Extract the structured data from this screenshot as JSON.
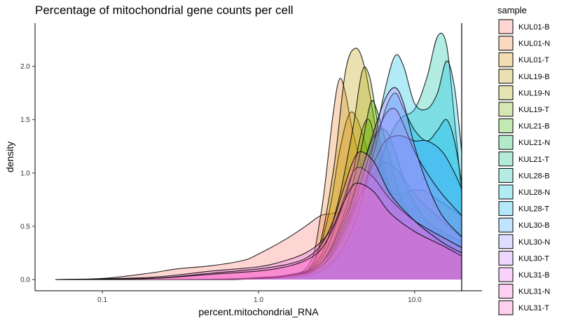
{
  "chart_data": {
    "type": "area",
    "subtype": "density",
    "title": "Percentage of mitochondrial gene counts per cell",
    "xlabel": "percent.mitochondrial_RNA",
    "ylabel": "density",
    "x_scale": "log10",
    "x_ticks": [
      0.1,
      1.0,
      10.0
    ],
    "x_tick_labels": [
      "0.1",
      "1.0",
      "10.0"
    ],
    "y_ticks": [
      0.0,
      0.5,
      1.0,
      1.5,
      2.0
    ],
    "y_tick_labels": [
      "0.0",
      "0.5",
      "1.0",
      "1.5",
      "2.0"
    ],
    "xlim": [
      0.05,
      20
    ],
    "ylim": [
      0,
      2.3
    ],
    "vline_x": 20,
    "legend_title": "sample",
    "legend_position": "right",
    "fill_alpha": 0.3,
    "series": [
      {
        "name": "KUL01-B",
        "color": "#F8766D",
        "points": [
          [
            0.05,
            0.0
          ],
          [
            0.1,
            0.01
          ],
          [
            0.2,
            0.06
          ],
          [
            0.3,
            0.1
          ],
          [
            0.5,
            0.13
          ],
          [
            0.8,
            0.18
          ],
          [
            1.0,
            0.24
          ],
          [
            1.5,
            0.38
          ],
          [
            2.0,
            0.5
          ],
          [
            2.5,
            0.6
          ],
          [
            3.0,
            0.62
          ],
          [
            3.5,
            0.65
          ],
          [
            4.0,
            0.68
          ],
          [
            5.0,
            0.78
          ],
          [
            6.0,
            0.82
          ],
          [
            8.0,
            0.8
          ],
          [
            10.0,
            0.84
          ],
          [
            12.0,
            0.82
          ],
          [
            15.0,
            0.72
          ],
          [
            20.0,
            0.6
          ]
        ]
      },
      {
        "name": "KUL01-N",
        "color": "#EA8331",
        "points": [
          [
            0.05,
            0.0
          ],
          [
            0.3,
            0.0
          ],
          [
            1.0,
            0.02
          ],
          [
            2.0,
            0.1
          ],
          [
            2.5,
            0.6
          ],
          [
            3.0,
            1.55
          ],
          [
            3.3,
            1.88
          ],
          [
            3.6,
            1.75
          ],
          [
            4.0,
            1.4
          ],
          [
            5.0,
            0.85
          ],
          [
            6.0,
            0.55
          ],
          [
            8.0,
            0.35
          ],
          [
            10.0,
            0.28
          ],
          [
            15.0,
            0.2
          ],
          [
            20.0,
            0.15
          ]
        ]
      },
      {
        "name": "KUL01-T",
        "color": "#D89000",
        "points": [
          [
            0.05,
            0.0
          ],
          [
            0.5,
            0.0
          ],
          [
            1.5,
            0.03
          ],
          [
            2.2,
            0.12
          ],
          [
            2.8,
            0.6
          ],
          [
            3.3,
            1.2
          ],
          [
            3.8,
            1.55
          ],
          [
            4.3,
            1.5
          ],
          [
            5.0,
            1.2
          ],
          [
            6.0,
            0.85
          ],
          [
            8.0,
            0.6
          ],
          [
            10.0,
            0.5
          ],
          [
            15.0,
            0.4
          ],
          [
            20.0,
            0.3
          ]
        ]
      },
      {
        "name": "KUL19-B",
        "color": "#C09B00",
        "points": [
          [
            0.05,
            0.0
          ],
          [
            0.5,
            0.0
          ],
          [
            1.5,
            0.03
          ],
          [
            2.3,
            0.2
          ],
          [
            3.0,
            1.0
          ],
          [
            3.6,
            1.95
          ],
          [
            4.2,
            2.17
          ],
          [
            4.8,
            1.98
          ],
          [
            5.5,
            1.5
          ],
          [
            6.0,
            1.2
          ],
          [
            7.0,
            0.8
          ],
          [
            9.0,
            0.55
          ],
          [
            12.0,
            0.4
          ],
          [
            20.0,
            0.3
          ]
        ]
      },
      {
        "name": "KUL19-N",
        "color": "#A3A500",
        "points": [
          [
            0.05,
            0.0
          ],
          [
            0.5,
            0.0
          ],
          [
            1.5,
            0.04
          ],
          [
            2.4,
            0.18
          ],
          [
            3.2,
            0.7
          ],
          [
            4.0,
            1.4
          ],
          [
            4.6,
            1.95
          ],
          [
            5.1,
            1.92
          ],
          [
            5.6,
            1.6
          ],
          [
            6.5,
            1.0
          ],
          [
            8.0,
            0.6
          ],
          [
            10.0,
            0.45
          ],
          [
            15.0,
            0.35
          ],
          [
            20.0,
            0.25
          ]
        ]
      },
      {
        "name": "KUL19-T",
        "color": "#7CAE00",
        "points": [
          [
            0.05,
            0.0
          ],
          [
            0.5,
            0.0
          ],
          [
            1.5,
            0.04
          ],
          [
            2.4,
            0.15
          ],
          [
            3.2,
            0.55
          ],
          [
            4.0,
            1.0
          ],
          [
            4.6,
            1.4
          ],
          [
            5.1,
            1.5
          ],
          [
            5.6,
            1.3
          ],
          [
            6.5,
            0.9
          ],
          [
            8.0,
            0.55
          ],
          [
            10.0,
            0.42
          ],
          [
            15.0,
            0.32
          ],
          [
            20.0,
            0.25
          ]
        ]
      },
      {
        "name": "KUL21-B",
        "color": "#39B600",
        "points": [
          [
            0.05,
            0.0
          ],
          [
            0.5,
            0.0
          ],
          [
            1.5,
            0.03
          ],
          [
            2.5,
            0.15
          ],
          [
            3.5,
            0.6
          ],
          [
            4.5,
            1.2
          ],
          [
            5.2,
            1.65
          ],
          [
            5.7,
            1.6
          ],
          [
            6.5,
            1.3
          ],
          [
            8.0,
            0.8
          ],
          [
            10.0,
            0.55
          ],
          [
            15.0,
            0.38
          ],
          [
            20.0,
            0.3
          ]
        ]
      },
      {
        "name": "KUL21-N",
        "color": "#00BB4E",
        "points": [
          [
            0.05,
            0.0
          ],
          [
            0.5,
            0.0
          ],
          [
            1.5,
            0.03
          ],
          [
            2.5,
            0.15
          ],
          [
            3.5,
            0.55
          ],
          [
            4.5,
            1.0
          ],
          [
            5.5,
            1.35
          ],
          [
            6.5,
            1.4
          ],
          [
            7.5,
            1.2
          ],
          [
            9.0,
            0.85
          ],
          [
            12.0,
            0.55
          ],
          [
            20.0,
            0.35
          ]
        ]
      },
      {
        "name": "KUL21-T",
        "color": "#00BF7D",
        "points": [
          [
            0.05,
            0.0
          ],
          [
            0.5,
            0.0
          ],
          [
            1.5,
            0.03
          ],
          [
            2.5,
            0.12
          ],
          [
            3.5,
            0.45
          ],
          [
            4.5,
            0.8
          ],
          [
            5.5,
            1.0
          ],
          [
            6.5,
            1.1
          ],
          [
            8.0,
            1.0
          ],
          [
            10.0,
            0.8
          ],
          [
            15.0,
            0.55
          ],
          [
            20.0,
            0.4
          ]
        ]
      },
      {
        "name": "KUL28-B",
        "color": "#00C1A3",
        "points": [
          [
            0.05,
            0.0
          ],
          [
            0.5,
            0.0
          ],
          [
            1.5,
            0.02
          ],
          [
            2.5,
            0.08
          ],
          [
            3.5,
            0.25
          ],
          [
            4.5,
            0.5
          ],
          [
            5.5,
            0.9
          ],
          [
            6.5,
            1.25
          ],
          [
            8.0,
            1.5
          ],
          [
            10.0,
            1.6
          ],
          [
            12.0,
            1.9
          ],
          [
            14.0,
            2.28
          ],
          [
            16.0,
            2.2
          ],
          [
            18.0,
            1.5
          ],
          [
            20.0,
            0.8
          ]
        ]
      },
      {
        "name": "KUL28-N",
        "color": "#00BAE0",
        "points": [
          [
            0.05,
            0.0
          ],
          [
            0.5,
            0.0
          ],
          [
            1.5,
            0.02
          ],
          [
            2.5,
            0.08
          ],
          [
            3.5,
            0.3
          ],
          [
            4.5,
            0.7
          ],
          [
            5.5,
            1.3
          ],
          [
            6.5,
            1.8
          ],
          [
            7.5,
            2.1
          ],
          [
            8.5,
            2.0
          ],
          [
            10.0,
            1.65
          ],
          [
            12.0,
            1.6
          ],
          [
            14.0,
            1.75
          ],
          [
            16.0,
            2.05
          ],
          [
            18.0,
            1.8
          ],
          [
            20.0,
            1.2
          ]
        ]
      },
      {
        "name": "KUL28-T",
        "color": "#00B0F6",
        "points": [
          [
            0.05,
            0.0
          ],
          [
            0.5,
            0.0
          ],
          [
            1.5,
            0.02
          ],
          [
            2.5,
            0.08
          ],
          [
            3.5,
            0.3
          ],
          [
            4.5,
            0.7
          ],
          [
            5.5,
            1.2
          ],
          [
            6.5,
            1.6
          ],
          [
            7.5,
            1.75
          ],
          [
            8.5,
            1.6
          ],
          [
            10.0,
            1.4
          ],
          [
            12.0,
            1.3
          ],
          [
            14.0,
            1.4
          ],
          [
            16.0,
            1.5
          ],
          [
            18.0,
            1.3
          ],
          [
            20.0,
            0.9
          ]
        ]
      },
      {
        "name": "KUL30-B",
        "color": "#35A2FF",
        "points": [
          [
            0.05,
            0.0
          ],
          [
            0.5,
            0.0
          ],
          [
            1.5,
            0.03
          ],
          [
            2.5,
            0.12
          ],
          [
            3.5,
            0.4
          ],
          [
            4.5,
            0.8
          ],
          [
            5.5,
            1.1
          ],
          [
            6.5,
            1.3
          ],
          [
            8.0,
            1.35
          ],
          [
            10.0,
            1.3
          ],
          [
            12.0,
            1.3
          ],
          [
            15.0,
            1.2
          ],
          [
            18.0,
            1.0
          ],
          [
            20.0,
            0.85
          ]
        ]
      },
      {
        "name": "KUL30-N",
        "color": "#9590FF",
        "points": [
          [
            0.05,
            0.0
          ],
          [
            0.5,
            0.0
          ],
          [
            1.5,
            0.03
          ],
          [
            2.5,
            0.12
          ],
          [
            3.5,
            0.45
          ],
          [
            4.5,
            0.9
          ],
          [
            5.5,
            1.3
          ],
          [
            6.5,
            1.55
          ],
          [
            7.5,
            1.6
          ],
          [
            8.5,
            1.45
          ],
          [
            10.0,
            1.2
          ],
          [
            12.0,
            1.0
          ],
          [
            15.0,
            0.8
          ],
          [
            20.0,
            0.6
          ]
        ]
      },
      {
        "name": "KUL30-T",
        "color": "#C77CFF",
        "points": [
          [
            0.05,
            0.0
          ],
          [
            0.5,
            0.0
          ],
          [
            1.5,
            0.03
          ],
          [
            2.5,
            0.15
          ],
          [
            3.5,
            0.5
          ],
          [
            4.5,
            1.0
          ],
          [
            5.5,
            1.4
          ],
          [
            6.5,
            1.7
          ],
          [
            7.5,
            1.8
          ],
          [
            8.5,
            1.65
          ],
          [
            10.0,
            1.25
          ],
          [
            12.0,
            0.9
          ],
          [
            15.0,
            0.6
          ],
          [
            20.0,
            0.4
          ]
        ]
      },
      {
        "name": "KUL31-B",
        "color": "#E76BF3",
        "points": [
          [
            0.05,
            0.0
          ],
          [
            0.2,
            0.02
          ],
          [
            0.5,
            0.08
          ],
          [
            1.0,
            0.12
          ],
          [
            1.5,
            0.18
          ],
          [
            2.0,
            0.25
          ],
          [
            2.5,
            0.35
          ],
          [
            3.0,
            0.5
          ],
          [
            3.5,
            0.75
          ],
          [
            4.0,
            1.0
          ],
          [
            4.5,
            1.05
          ],
          [
            5.5,
            0.95
          ],
          [
            7.0,
            0.75
          ],
          [
            10.0,
            0.55
          ],
          [
            15.0,
            0.4
          ],
          [
            20.0,
            0.3
          ]
        ]
      },
      {
        "name": "KUL31-N",
        "color": "#FA62DB",
        "points": [
          [
            0.05,
            0.0
          ],
          [
            0.2,
            0.01
          ],
          [
            0.5,
            0.06
          ],
          [
            1.0,
            0.1
          ],
          [
            1.5,
            0.14
          ],
          [
            2.0,
            0.2
          ],
          [
            2.5,
            0.32
          ],
          [
            3.0,
            0.55
          ],
          [
            3.5,
            0.85
          ],
          [
            4.0,
            1.1
          ],
          [
            4.5,
            1.2
          ],
          [
            5.5,
            1.1
          ],
          [
            7.0,
            0.8
          ],
          [
            10.0,
            0.55
          ],
          [
            15.0,
            0.35
          ],
          [
            20.0,
            0.25
          ]
        ]
      },
      {
        "name": "KUL31-T",
        "color": "#FF62BC",
        "points": [
          [
            0.05,
            0.0
          ],
          [
            0.2,
            0.01
          ],
          [
            0.5,
            0.05
          ],
          [
            1.0,
            0.08
          ],
          [
            1.5,
            0.12
          ],
          [
            2.0,
            0.18
          ],
          [
            2.5,
            0.28
          ],
          [
            3.0,
            0.48
          ],
          [
            3.5,
            0.72
          ],
          [
            4.0,
            0.88
          ],
          [
            4.5,
            0.9
          ],
          [
            5.5,
            0.82
          ],
          [
            7.0,
            0.62
          ],
          [
            10.0,
            0.45
          ],
          [
            15.0,
            0.32
          ],
          [
            20.0,
            0.22
          ]
        ]
      }
    ]
  }
}
